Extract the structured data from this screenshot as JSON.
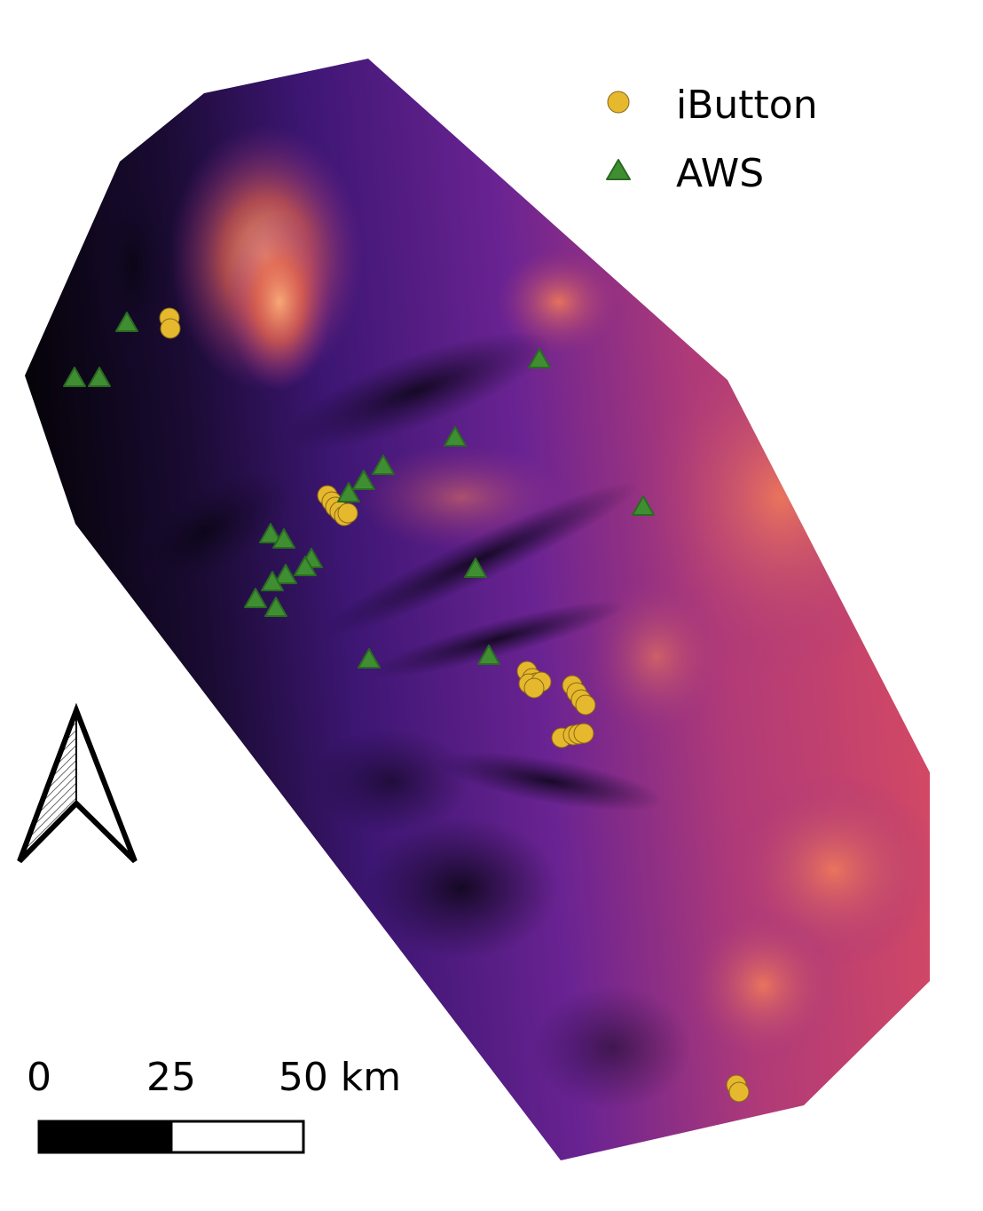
{
  "legend": {
    "items": [
      {
        "label": "iButton",
        "symbol": "circle",
        "color": "#e6b82e"
      },
      {
        "label": "AWS",
        "symbol": "triangle",
        "color": "#3f8f32"
      }
    ]
  },
  "scale_bar": {
    "labels": [
      "0",
      "25",
      "50 km"
    ]
  },
  "colors": {
    "ramp": [
      "#050308",
      "#26104a",
      "#4d1a8a",
      "#8a2a8c",
      "#c23b6a",
      "#e35d4e",
      "#f59a6a"
    ],
    "ibutton_fill": "#e6b82e",
    "ibutton_stroke": "#8a6a14",
    "aws_fill": "#3f8f32",
    "aws_stroke": "#2a6a22"
  },
  "north_arrow": {
    "icon": "north-arrow-icon"
  },
  "chart_data": {
    "type": "scatter",
    "series": [
      {
        "name": "iButton",
        "marker": "circle"
      },
      {
        "name": "AWS",
        "marker": "triangle"
      }
    ]
  }
}
